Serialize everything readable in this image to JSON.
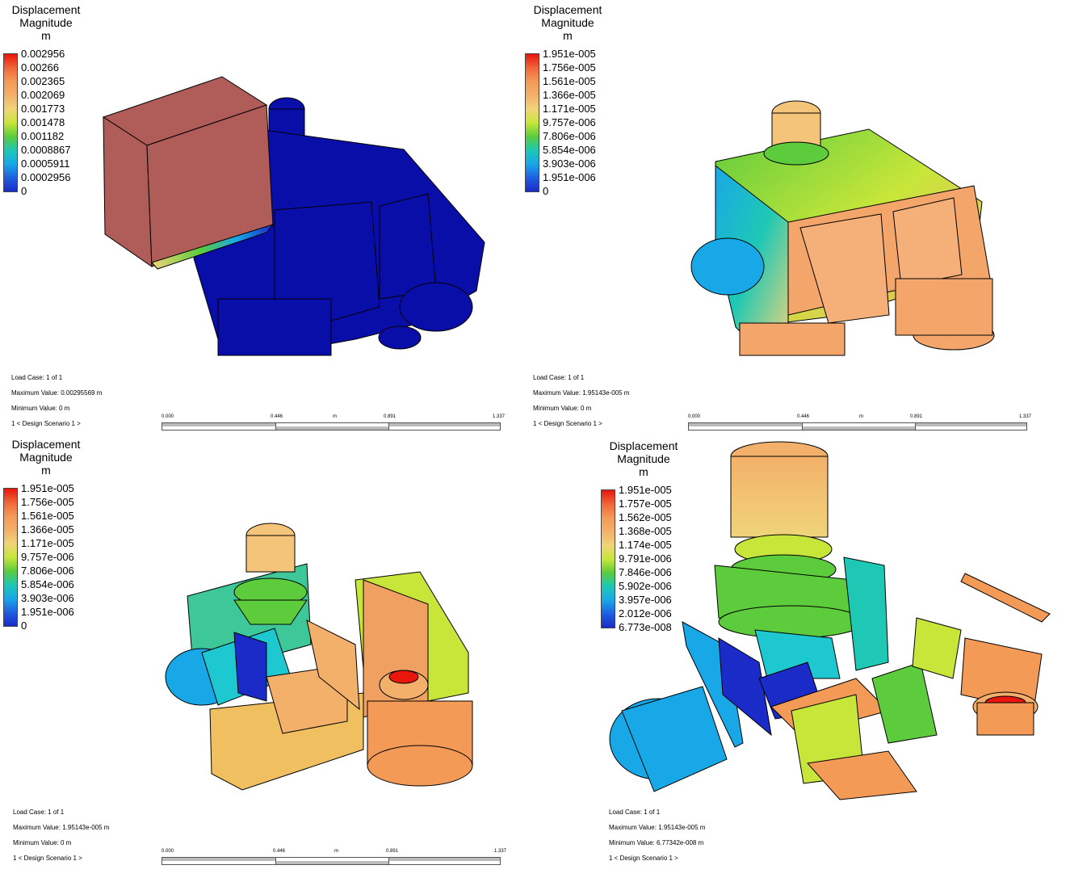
{
  "panels": [
    {
      "legend_title_1": "Displacement",
      "legend_title_2": "Magnitude",
      "legend_unit": "m",
      "legend_values": [
        "0.002956",
        "0.00266",
        "0.002365",
        "0.002069",
        "0.001773",
        "0.001478",
        "0.001182",
        "0.0008867",
        "0.0005911",
        "0.0002956",
        "0"
      ],
      "load_case": "Load Case:  1 of 1",
      "max_value": "Maximum Value: 0.00295569 m",
      "min_value": "Minimum Value: 0 m",
      "scenario": "1 < Design Scenario 1 >"
    },
    {
      "legend_title_1": "Displacement",
      "legend_title_2": "Magnitude",
      "legend_unit": "m",
      "legend_values": [
        "1.951e-005",
        "1.756e-005",
        "1.561e-005",
        "1.366e-005",
        "1.171e-005",
        "9.757e-006",
        "7.806e-006",
        "5.854e-006",
        "3.903e-006",
        "1.951e-006",
        "0"
      ],
      "load_case": "Load Case:  1 of 1",
      "max_value": "Maximum Value: 1.95143e-005 m",
      "min_value": "Minimum Value: 0 m",
      "scenario": "1 < Design Scenario 1 >"
    },
    {
      "legend_title_1": "Displacement",
      "legend_title_2": "Magnitude",
      "legend_unit": "m",
      "legend_values": [
        "1.951e-005",
        "1.756e-005",
        "1.561e-005",
        "1.366e-005",
        "1.171e-005",
        "9.757e-006",
        "7.806e-006",
        "5.854e-006",
        "3.903e-006",
        "1.951e-006",
        "0"
      ],
      "load_case": "Load Case:  1 of 1",
      "max_value": "Maximum Value: 1.95143e-005 m",
      "min_value": "Minimum Value: 0 m",
      "scenario": "1 < Design Scenario 1 >"
    },
    {
      "legend_title_1": "Displacement",
      "legend_title_2": "Magnitude",
      "legend_unit": "m",
      "legend_values": [
        "1.951e-005",
        "1.757e-005",
        "1.562e-005",
        "1.368e-005",
        "1.174e-005",
        "9.791e-006",
        "7.846e-006",
        "5.902e-006",
        "3.957e-006",
        "2.012e-006",
        "6.773e-008"
      ],
      "load_case": "Load Case:  1 of 1",
      "max_value": "Maximum Value: 1.95143e-005 m",
      "min_value": "Minimum Value: 6.77342e-008 m",
      "scenario": "1 < Design Scenario 1 >"
    }
  ],
  "scale_bar": {
    "ticks": [
      "0.000",
      "0.446",
      "0.891",
      "1.337"
    ],
    "unit": "m"
  },
  "colors": {
    "max": "#e8160c",
    "min": "#1a2bc8",
    "mid": "#5ccc3c"
  }
}
